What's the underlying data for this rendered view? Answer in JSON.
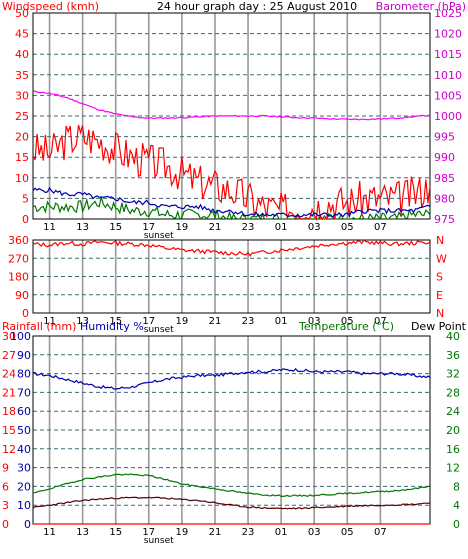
{
  "header": {
    "left_title": "Windspeed (kmh)",
    "center_title": "24 hour graph day : 25 August 2010",
    "right_title": "Barometer (hPa)"
  },
  "colors": {
    "background": "#FFFFFF",
    "frame": "#000000",
    "grid_vertical": "#999999",
    "grid_horizontal": "#3a6b78",
    "wind": "#FF0000",
    "gust_avg": "#0000AA",
    "wind_green": "#007700",
    "barometer": "#FF00FF",
    "direction": "#FF0000",
    "humidity": "#0000AA",
    "temperature": "#007700",
    "dewpoint": "#550000",
    "rainfall": "#FF0000",
    "left_axis_text": "#FF0000",
    "right_axis_text": "#CC00CC",
    "temp_axis_text": "#007700",
    "humidity_axis_text": "#0000AA"
  },
  "time_axis": {
    "ticks": [
      "11",
      "13",
      "15",
      "17",
      "19",
      "21",
      "23",
      "01",
      "03",
      "05",
      "07"
    ],
    "sunset_label": "sunset"
  },
  "direction_panel": {
    "left_ticks": [
      "360",
      "270",
      "180",
      "90",
      "0"
    ],
    "right_ticks": [
      "N",
      "W",
      "S",
      "E",
      "N"
    ]
  },
  "bottom_panel": {
    "title_rainfall": "Rainfall (mm)",
    "title_humidity": "Humidity %",
    "title_temperature": "Temperature (°C)",
    "title_dewpoint": "Dew Point",
    "rain_ticks": [
      "30",
      "27",
      "24",
      "21",
      "18",
      "15",
      "12",
      "9",
      "6",
      "3",
      "0"
    ],
    "humidity_ticks": [
      "100",
      "90",
      "80",
      "70",
      "60",
      "50",
      "40",
      "30",
      "20",
      "10",
      "0"
    ],
    "temp_ticks": [
      "40",
      "36",
      "32",
      "28",
      "24",
      "20",
      "16",
      "12",
      "8",
      "4",
      "0"
    ]
  },
  "chart_data": [
    {
      "type": "line",
      "title": "Windspeed (kmh) / Barometer (hPa)",
      "x_hours": [
        10,
        11,
        12,
        13,
        14,
        15,
        16,
        17,
        18,
        19,
        20,
        21,
        22,
        23,
        24,
        25,
        26,
        27,
        28,
        29,
        30,
        31,
        32,
        33,
        34
      ],
      "ylabel_left": "Windspeed (kmh)",
      "ylim_left": [
        0,
        50
      ],
      "y_ticks_left": [
        "50",
        "45",
        "40",
        "35",
        "30",
        "25",
        "20",
        "15",
        "10",
        "5",
        "0"
      ],
      "ylabel_right": "Barometer (hPa)",
      "ylim_right": [
        975,
        1025
      ],
      "y_ticks_right": [
        "1025",
        "1020",
        "1015",
        "1010",
        "1005",
        "1000",
        "995",
        "990",
        "985",
        "980",
        "975"
      ],
      "series": [
        {
          "values": [
            17,
            16,
            19,
            20,
            19,
            17,
            15,
            14,
            13,
            11,
            9,
            8,
            7,
            5,
            3,
            2,
            3,
            3,
            4,
            4,
            5,
            5,
            5,
            6,
            8
          ]
        },
        {
          "values": [
            7,
            7,
            6,
            6,
            5,
            5,
            4,
            4,
            3,
            3,
            3,
            2,
            2,
            1,
            1,
            1,
            1,
            1,
            1,
            1,
            2,
            2,
            2,
            2,
            3
          ]
        },
        {
          "values": [
            3,
            3,
            3,
            3,
            4,
            3,
            2,
            2,
            1,
            1,
            1,
            1,
            0,
            0,
            0,
            0,
            0,
            0,
            0,
            0,
            0,
            0,
            0,
            1,
            1
          ]
        },
        {
          "values": [
            1006,
            1005.5,
            1004.5,
            1003,
            1001.5,
            1000.5,
            999.8,
            999.5,
            999.5,
            999.6,
            999.8,
            1000,
            1000,
            1000,
            1000,
            999.8,
            999.6,
            999.5,
            999.3,
            999.2,
            999.2,
            999.3,
            999.5,
            999.8,
            1000.2
          ]
        }
      ]
    },
    {
      "type": "scatter",
      "title": "Wind direction",
      "x_hours": [
        10,
        11,
        12,
        13,
        14,
        15,
        16,
        17,
        18,
        19,
        20,
        21,
        22,
        23,
        24,
        25,
        26,
        27,
        28,
        29,
        30,
        31,
        32,
        33,
        34
      ],
      "ylim": [
        0,
        360
      ],
      "values": [
        340,
        335,
        345,
        340,
        350,
        345,
        340,
        335,
        320,
        310,
        305,
        300,
        295,
        290,
        300,
        310,
        320,
        330,
        340,
        345,
        350,
        345,
        340,
        345,
        350
      ]
    },
    {
      "type": "line",
      "title": "Rainfall (mm) / Humidity % / Temperature (°C) / Dew Point",
      "x_hours": [
        10,
        11,
        12,
        13,
        14,
        15,
        16,
        17,
        18,
        19,
        20,
        21,
        22,
        23,
        24,
        25,
        26,
        27,
        28,
        29,
        30,
        31,
        32,
        33,
        34
      ],
      "ylim_humidity": [
        0,
        100
      ],
      "ylim_temperature": [
        0,
        40
      ],
      "ylim_rainfall": [
        0,
        30
      ],
      "series": [
        {
          "name": "Humidity %",
          "values": [
            80,
            79,
            77,
            75,
            73,
            72,
            73,
            75,
            77,
            78,
            79,
            79,
            80,
            81,
            81,
            82,
            82,
            81,
            81,
            81,
            80,
            80,
            80,
            79,
            78
          ]
        },
        {
          "name": "Temperature (°C)",
          "values": [
            6.5,
            7.5,
            8.5,
            9.5,
            10,
            10.5,
            10.5,
            10.3,
            9.5,
            8.5,
            8,
            7.5,
            7,
            6.5,
            6.2,
            6,
            6,
            6.1,
            6.3,
            6.5,
            6.7,
            6.9,
            7.1,
            7.5,
            8
          ]
        },
        {
          "name": "Dew Point",
          "values": [
            3.5,
            4,
            4.5,
            5,
            5.3,
            5.5,
            5.6,
            5.6,
            5.5,
            5.2,
            5,
            4.5,
            4,
            3.6,
            3.4,
            3.3,
            3.3,
            3.5,
            3.6,
            3.8,
            3.9,
            4,
            4.1,
            4.2,
            4.5
          ]
        },
        {
          "name": "Rainfall (mm)",
          "values": [
            0,
            0,
            0,
            0,
            0,
            0,
            0,
            0,
            0,
            0,
            0,
            0,
            0,
            0,
            0,
            0,
            0,
            0,
            0,
            0,
            0,
            0,
            0,
            0,
            0
          ]
        }
      ]
    }
  ]
}
